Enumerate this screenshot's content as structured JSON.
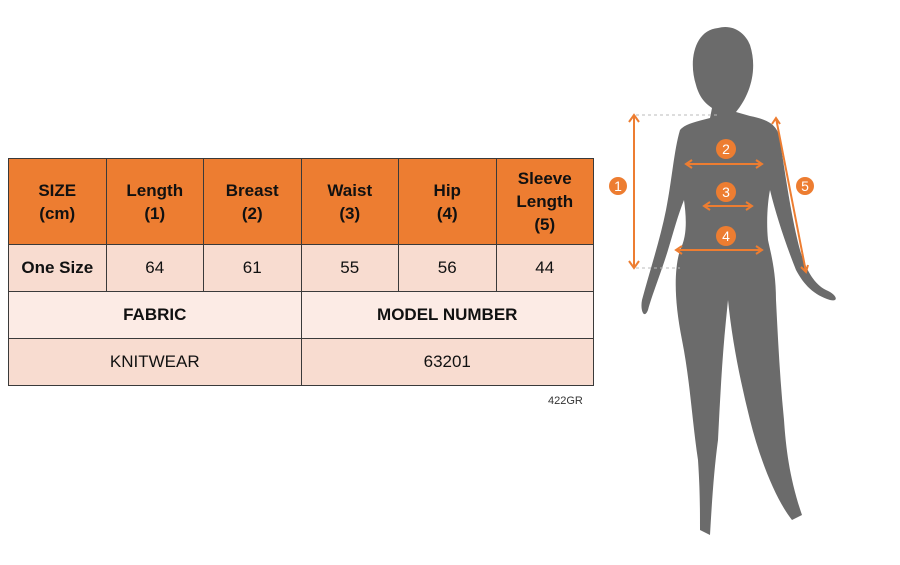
{
  "table": {
    "headers": [
      [
        "SIZE",
        "(cm)"
      ],
      [
        "Length",
        "(1)"
      ],
      [
        "Breast",
        "(2)"
      ],
      [
        "Waist",
        "(3)"
      ],
      [
        "Hip",
        "(4)"
      ],
      [
        "Sleeve",
        "Length",
        "(5)"
      ]
    ],
    "row": {
      "label": "One Size",
      "values": [
        "64",
        "61",
        "55",
        "56",
        "44"
      ]
    },
    "fabric_label": "FABRIC",
    "model_label": "MODEL NUMBER",
    "fabric": "KNITWEAR",
    "model_number": "63201"
  },
  "code": "422GR",
  "figure": {
    "markers": [
      "1",
      "2",
      "3",
      "4",
      "5"
    ],
    "accent": "#ED7D31",
    "silhouette": "#6b6b6b"
  }
}
